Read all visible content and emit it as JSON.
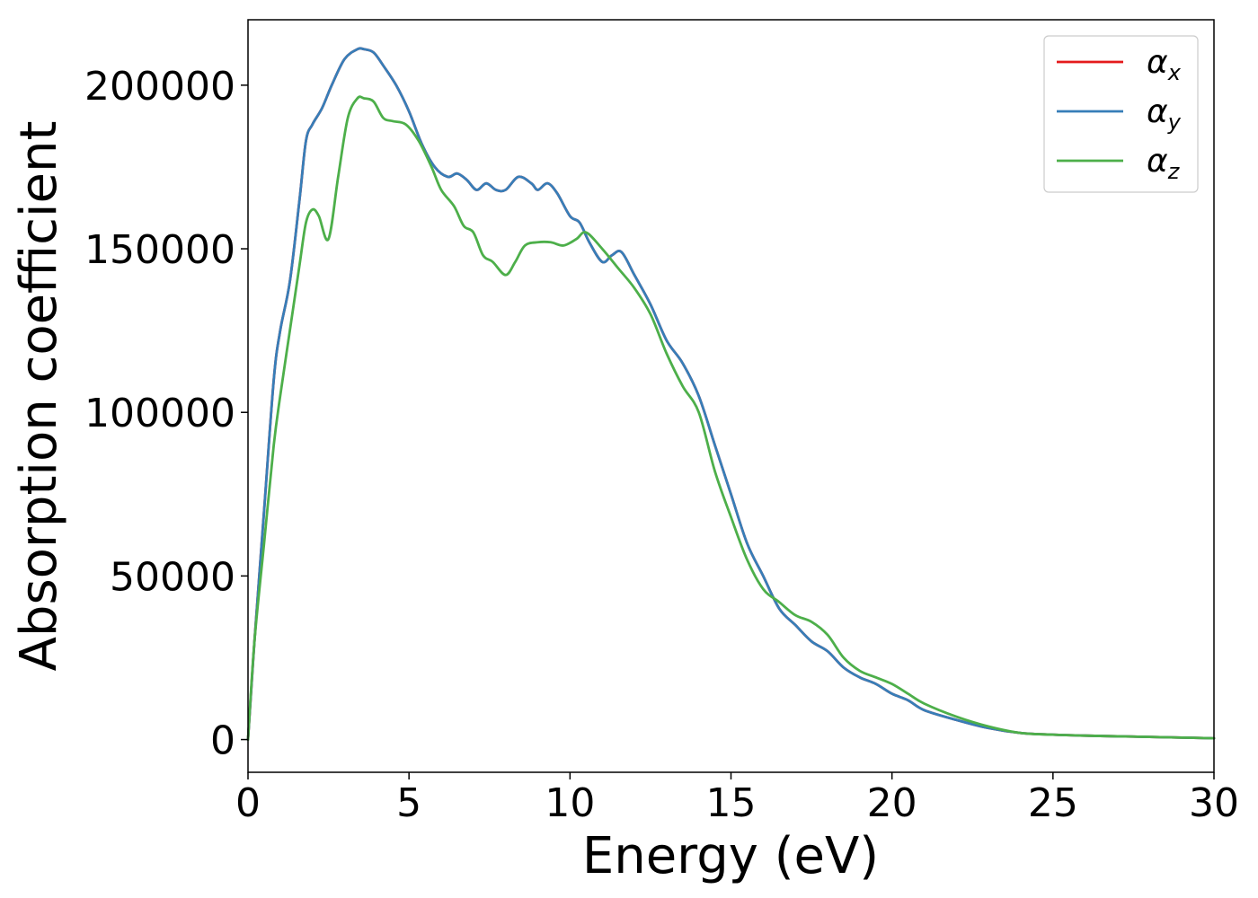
{
  "chart_data": {
    "type": "line",
    "title": "",
    "xlabel": "Energy (eV)",
    "ylabel": "Absorption coefficient",
    "xlim": [
      0,
      30
    ],
    "ylim": [
      -10000,
      220000
    ],
    "xticks": [
      0,
      5,
      10,
      15,
      20,
      25,
      30
    ],
    "xtick_labels": [
      "0",
      "5",
      "10",
      "15",
      "20",
      "25",
      "30"
    ],
    "yticks": [
      0,
      50000,
      100000,
      150000,
      200000
    ],
    "ytick_labels": [
      "0",
      "50000",
      "100000",
      "150000",
      "200000"
    ],
    "grid": false,
    "legend_position": "top-right",
    "series": [
      {
        "name": "α",
        "subscript": "x",
        "color": "#e41a1c",
        "x": [
          0,
          0.2,
          0.5,
          0.8,
          1.0,
          1.3,
          1.6,
          1.8,
          2.0,
          2.3,
          2.6,
          3.0,
          3.4,
          3.6,
          3.9,
          4.2,
          4.6,
          5.0,
          5.4,
          5.8,
          6.2,
          6.5,
          6.8,
          7.1,
          7.4,
          7.7,
          8.0,
          8.4,
          8.8,
          9.0,
          9.3,
          9.6,
          10.0,
          10.3,
          10.6,
          11.0,
          11.3,
          11.6,
          12.0,
          12.5,
          13.0,
          13.5,
          14.0,
          14.5,
          15.0,
          15.5,
          16.0,
          16.5,
          17.0,
          17.5,
          18.0,
          18.5,
          19.0,
          19.5,
          20.0,
          20.5,
          21.0,
          22.0,
          23.0,
          24.0,
          25.0,
          26.0,
          27.0,
          28.0,
          29.0,
          30.0
        ],
        "y": [
          0,
          30000,
          70000,
          110000,
          125000,
          140000,
          165000,
          183000,
          188000,
          193000,
          200000,
          208000,
          211000,
          211000,
          210000,
          206000,
          200000,
          192000,
          182000,
          175000,
          172000,
          173000,
          171000,
          168000,
          170000,
          168000,
          168000,
          172000,
          170000,
          168000,
          170000,
          167000,
          160000,
          158000,
          152000,
          146000,
          148000,
          149000,
          142000,
          133000,
          122000,
          115000,
          105000,
          90000,
          75000,
          60000,
          50000,
          40000,
          35000,
          30000,
          27000,
          22000,
          19000,
          17000,
          14000,
          12000,
          9000,
          6000,
          3500,
          2000,
          1500,
          1200,
          1000,
          800,
          600,
          400
        ]
      },
      {
        "name": "α",
        "subscript": "y",
        "color": "#377eb8",
        "x": [
          0,
          0.2,
          0.5,
          0.8,
          1.0,
          1.3,
          1.6,
          1.8,
          2.0,
          2.3,
          2.6,
          3.0,
          3.4,
          3.6,
          3.9,
          4.2,
          4.6,
          5.0,
          5.4,
          5.8,
          6.2,
          6.5,
          6.8,
          7.1,
          7.4,
          7.7,
          8.0,
          8.4,
          8.8,
          9.0,
          9.3,
          9.6,
          10.0,
          10.3,
          10.6,
          11.0,
          11.3,
          11.6,
          12.0,
          12.5,
          13.0,
          13.5,
          14.0,
          14.5,
          15.0,
          15.5,
          16.0,
          16.5,
          17.0,
          17.5,
          18.0,
          18.5,
          19.0,
          19.5,
          20.0,
          20.5,
          21.0,
          22.0,
          23.0,
          24.0,
          25.0,
          26.0,
          27.0,
          28.0,
          29.0,
          30.0
        ],
        "y": [
          0,
          30000,
          70000,
          110000,
          125000,
          140000,
          165000,
          183000,
          188000,
          193000,
          200000,
          208000,
          211000,
          211000,
          210000,
          206000,
          200000,
          192000,
          182000,
          175000,
          172000,
          173000,
          171000,
          168000,
          170000,
          168000,
          168000,
          172000,
          170000,
          168000,
          170000,
          167000,
          160000,
          158000,
          152000,
          146000,
          148000,
          149000,
          142000,
          133000,
          122000,
          115000,
          105000,
          90000,
          75000,
          60000,
          50000,
          40000,
          35000,
          30000,
          27000,
          22000,
          19000,
          17000,
          14000,
          12000,
          9000,
          6000,
          3500,
          2000,
          1500,
          1200,
          1000,
          800,
          600,
          400
        ]
      },
      {
        "name": "α",
        "subscript": "z",
        "color": "#4daf4a",
        "x": [
          0,
          0.2,
          0.5,
          0.8,
          1.0,
          1.3,
          1.6,
          1.8,
          2.0,
          2.2,
          2.5,
          2.8,
          3.1,
          3.4,
          3.6,
          3.9,
          4.2,
          4.5,
          4.9,
          5.3,
          5.7,
          6.0,
          6.4,
          6.7,
          7.0,
          7.3,
          7.6,
          8.0,
          8.3,
          8.6,
          9.0,
          9.4,
          9.8,
          10.2,
          10.5,
          11.0,
          11.5,
          12.0,
          12.5,
          13.0,
          13.5,
          14.0,
          14.5,
          15.0,
          15.5,
          16.0,
          16.5,
          17.0,
          17.5,
          18.0,
          18.5,
          19.0,
          19.5,
          20.0,
          20.5,
          21.0,
          22.0,
          23.0,
          24.0,
          25.0,
          26.0,
          27.0,
          28.0,
          29.0,
          30.0
        ],
        "y": [
          0,
          30000,
          60000,
          90000,
          105000,
          125000,
          145000,
          158000,
          162000,
          160000,
          153000,
          172000,
          190000,
          196000,
          196000,
          195000,
          190000,
          189000,
          188000,
          183000,
          175000,
          168000,
          163000,
          157000,
          155000,
          148000,
          146000,
          142000,
          146000,
          151000,
          152000,
          152000,
          151000,
          153000,
          155000,
          150000,
          144000,
          138000,
          130000,
          118000,
          108000,
          100000,
          82000,
          68000,
          55000,
          46000,
          42000,
          38000,
          36000,
          32000,
          25000,
          21000,
          19000,
          17000,
          14000,
          11000,
          7000,
          4000,
          2000,
          1500,
          1200,
          1000,
          800,
          600,
          400
        ]
      }
    ]
  }
}
